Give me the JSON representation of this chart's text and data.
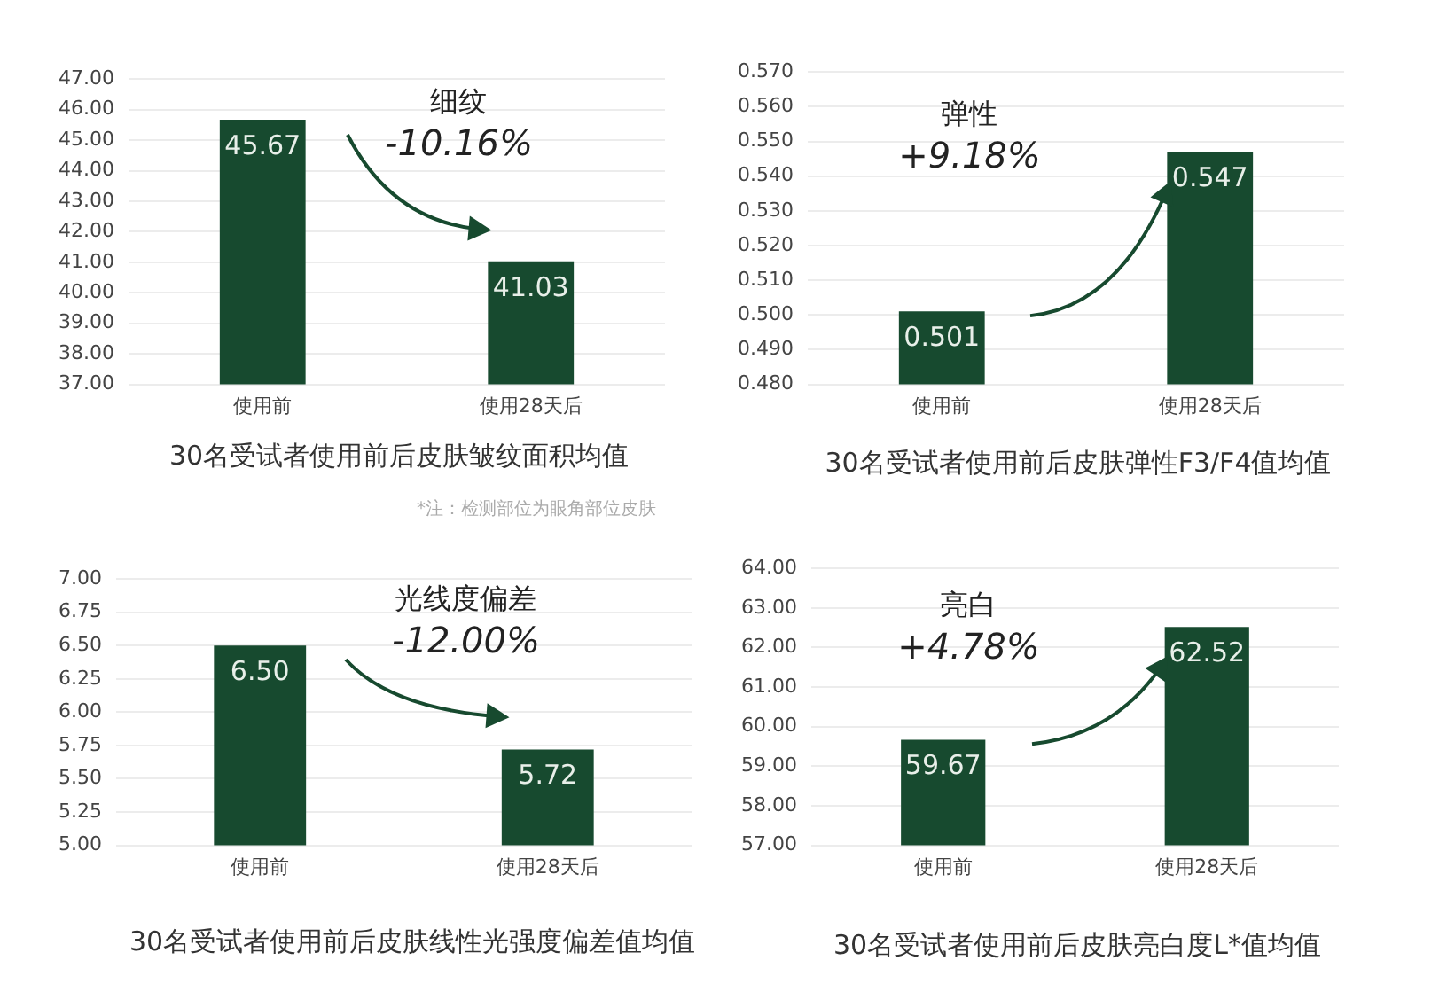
{
  "chart_data": [
    {
      "type": "bar",
      "title": "30名受试者使用前后皮肤皱纹面积均值",
      "categories": [
        "使用前",
        "使用28天后"
      ],
      "values": [
        45.67,
        41.03
      ],
      "value_labels": [
        "45.67",
        "41.03"
      ],
      "color": "#174a2f",
      "ylim": [
        37,
        47
      ],
      "yticks": [
        {
          "value": 37,
          "label": "37.00"
        },
        {
          "value": 38,
          "label": "38.00"
        },
        {
          "value": 39,
          "label": "39.00"
        },
        {
          "value": 40,
          "label": "40.00"
        },
        {
          "value": 41,
          "label": "41.00"
        },
        {
          "value": 42,
          "label": "42.00"
        },
        {
          "value": 43,
          "label": "43.00"
        },
        {
          "value": 44,
          "label": "44.00"
        },
        {
          "value": 45,
          "label": "45.00"
        },
        {
          "value": 46,
          "label": "46.00"
        },
        {
          "value": 47,
          "label": "47.00"
        }
      ],
      "grid": "y",
      "annotations": [
        "细纹",
        "-10.16%",
        "*注：检测部位为眼角部位皮肤"
      ]
    },
    {
      "type": "bar",
      "title": "30名受试者使用前后皮肤弹性F3/F4值均值",
      "categories": [
        "使用前",
        "使用28天后"
      ],
      "values": [
        0.501,
        0.547
      ],
      "value_labels": [
        "0.501",
        "0.547"
      ],
      "color": "#174a2f",
      "ylim": [
        0.48,
        0.57
      ],
      "yticks": [
        {
          "value": 0.48,
          "label": "0.480"
        },
        {
          "value": 0.49,
          "label": "0.490"
        },
        {
          "value": 0.5,
          "label": "0.500"
        },
        {
          "value": 0.51,
          "label": "0.510"
        },
        {
          "value": 0.52,
          "label": "0.520"
        },
        {
          "value": 0.53,
          "label": "0.530"
        },
        {
          "value": 0.54,
          "label": "0.540"
        },
        {
          "value": 0.55,
          "label": "0.550"
        },
        {
          "value": 0.56,
          "label": "0.560"
        },
        {
          "value": 0.57,
          "label": "0.570"
        }
      ],
      "grid": "y",
      "annotations": [
        "弹性",
        "+9.18%"
      ]
    },
    {
      "type": "bar",
      "title": "30名受试者使用前后皮肤线性光强度偏差值均值",
      "categories": [
        "使用前",
        "使用28天后"
      ],
      "values": [
        6.5,
        5.72
      ],
      "value_labels": [
        "6.50",
        "5.72"
      ],
      "color": "#174a2f",
      "ylim": [
        5,
        7
      ],
      "yticks": [
        {
          "value": 5,
          "label": "5.00"
        },
        {
          "value": 5.25,
          "label": "5.25"
        },
        {
          "value": 5.5,
          "label": "5.50"
        },
        {
          "value": 5.75,
          "label": "5.75"
        },
        {
          "value": 6,
          "label": "6.00"
        },
        {
          "value": 6.25,
          "label": "6.25"
        },
        {
          "value": 6.5,
          "label": "6.50"
        },
        {
          "value": 6.75,
          "label": "6.75"
        },
        {
          "value": 7,
          "label": "7.00"
        }
      ],
      "grid": "y",
      "annotations": [
        "光线度偏差",
        "-12.00%"
      ]
    },
    {
      "type": "bar",
      "title": "30名受试者使用前后皮肤亮白度L*值均值",
      "categories": [
        "使用前",
        "使用28天后"
      ],
      "values": [
        59.67,
        62.52
      ],
      "value_labels": [
        "59.67",
        "62.52"
      ],
      "color": "#174a2f",
      "ylim": [
        57,
        64
      ],
      "yticks": [
        {
          "value": 57,
          "label": "57.00"
        },
        {
          "value": 58,
          "label": "58.00"
        },
        {
          "value": 59,
          "label": "59.00"
        },
        {
          "value": 60,
          "label": "60.00"
        },
        {
          "value": 61,
          "label": "61.00"
        },
        {
          "value": 62,
          "label": "62.00"
        },
        {
          "value": 63,
          "label": "63.00"
        },
        {
          "value": 64,
          "label": "64.00"
        }
      ],
      "grid": "y",
      "annotations": [
        "亮白",
        "+4.78%"
      ]
    }
  ]
}
